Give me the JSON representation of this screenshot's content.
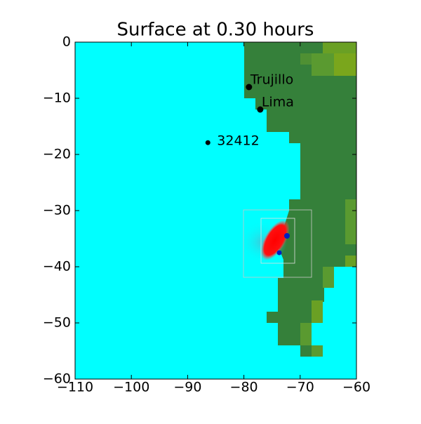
{
  "chart_data": {
    "type": "scatter",
    "title": "Surface at 0.30 hours",
    "xlim": [
      -110,
      -60
    ],
    "ylim": [
      -60,
      0
    ],
    "xticks": [
      {
        "value": -110,
        "label": "−110"
      },
      {
        "value": -100,
        "label": "−100"
      },
      {
        "value": -90,
        "label": "−90"
      },
      {
        "value": -80,
        "label": "−80"
      },
      {
        "value": -70,
        "label": "−70"
      },
      {
        "value": -60,
        "label": "−60"
      }
    ],
    "yticks": [
      0,
      {
        "value": -10,
        "label": "−10"
      },
      {
        "value": -20,
        "label": "−20"
      },
      {
        "value": -30,
        "label": "−30"
      },
      {
        "value": -40,
        "label": "−40"
      },
      {
        "value": -50,
        "label": "−50"
      },
      {
        "value": -60,
        "label": "−60"
      }
    ],
    "points": [
      {
        "name": "Trujillo",
        "x": -79.1,
        "y": -8.0
      },
      {
        "name": "Lima",
        "x": -77.1,
        "y": -12.0
      },
      {
        "name": "32412",
        "x": -86.4,
        "y": -17.9
      }
    ],
    "color": "#000000"
  }
}
